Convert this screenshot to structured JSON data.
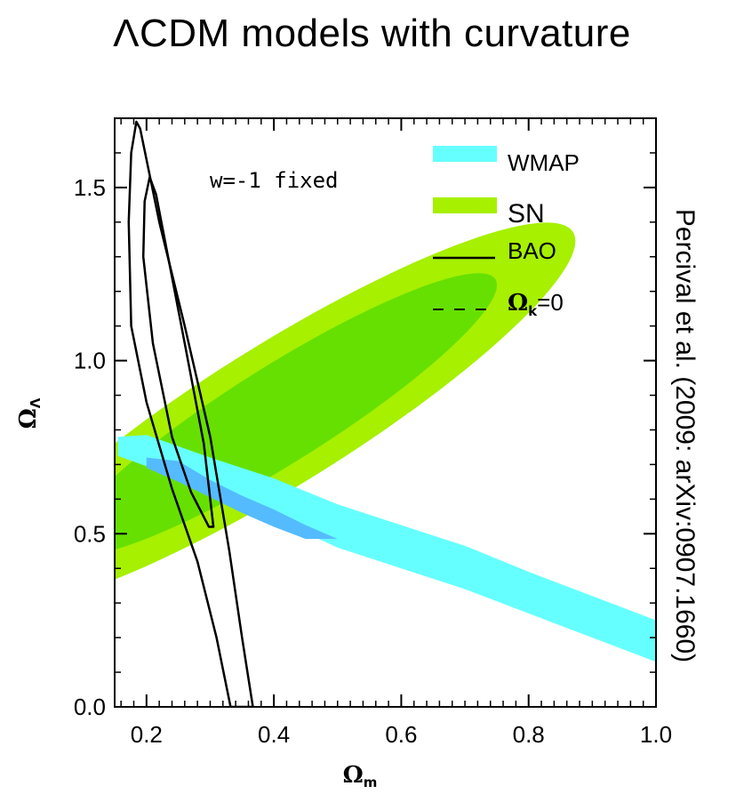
{
  "title": "ΛCDM models with curvature",
  "side_note": "Percival et al. (2009: arXiv:0907.1660)",
  "chart_data": {
    "type": "contour",
    "title": "ΛCDM models with curvature",
    "xlabel": {
      "symbol": "Ω",
      "subscript": "m"
    },
    "ylabel": {
      "symbol": "Ω",
      "subscript": "Λ"
    },
    "xlim": [
      0.15,
      1.0
    ],
    "ylim": [
      0.0,
      1.7
    ],
    "xticks": [
      0.2,
      0.4,
      0.6,
      0.8,
      1.0
    ],
    "xtick_labels": [
      "0.2",
      "0.4",
      "0.6",
      "0.8",
      "1.0"
    ],
    "yticks": [
      0.0,
      0.5,
      1.0,
      1.5
    ],
    "ytick_labels": [
      "0.0",
      "0.5",
      "1.0",
      "1.5"
    ],
    "annotation": "w=-1 fixed",
    "legend": {
      "position": "top-right",
      "items": [
        {
          "label": "WMAP",
          "style": "band",
          "color": "#66ffff"
        },
        {
          "label": "SN",
          "style": "band",
          "color": "#a6f000"
        },
        {
          "label": "BAO",
          "style": "solid-line",
          "color": "#000000"
        },
        {
          "label_symbol": "Ω",
          "label_subscript": "k",
          "label_suffix": "=0",
          "style": "dashed-line",
          "color": "#000000"
        }
      ]
    },
    "series": [
      {
        "name": "WMAP",
        "colors": {
          "outer": "#66ffff",
          "inner": "#55bbff"
        },
        "outer": [
          [
            0.155,
            0.78
          ],
          [
            0.2,
            0.785
          ],
          [
            0.3,
            0.72
          ],
          [
            0.4,
            0.66
          ],
          [
            0.5,
            0.585
          ],
          [
            0.6,
            0.525
          ],
          [
            0.7,
            0.465
          ],
          [
            0.8,
            0.39
          ],
          [
            0.9,
            0.32
          ],
          [
            1.0,
            0.25
          ],
          [
            1.0,
            0.13
          ],
          [
            0.9,
            0.2
          ],
          [
            0.8,
            0.27
          ],
          [
            0.7,
            0.34
          ],
          [
            0.6,
            0.4
          ],
          [
            0.5,
            0.46
          ],
          [
            0.4,
            0.545
          ],
          [
            0.3,
            0.625
          ],
          [
            0.2,
            0.695
          ],
          [
            0.155,
            0.725
          ]
        ],
        "inner": [
          [
            0.2,
            0.72
          ],
          [
            0.25,
            0.71
          ],
          [
            0.3,
            0.655
          ],
          [
            0.35,
            0.61
          ],
          [
            0.4,
            0.57
          ],
          [
            0.45,
            0.525
          ],
          [
            0.5,
            0.485
          ],
          [
            0.45,
            0.485
          ],
          [
            0.4,
            0.52
          ],
          [
            0.35,
            0.56
          ],
          [
            0.3,
            0.605
          ],
          [
            0.25,
            0.65
          ],
          [
            0.2,
            0.69
          ]
        ]
      },
      {
        "name": "SN",
        "colors": {
          "outer": "#a6f000",
          "inner": "#66e000"
        },
        "outer": {
          "center": [
            0.41,
            0.845
          ],
          "semi_major": 0.705,
          "semi_minor": 0.156,
          "angle_deg": 50.6
        },
        "inner": {
          "center": [
            0.41,
            0.845
          ],
          "semi_major": 0.52,
          "semi_minor": 0.107,
          "angle_deg": 50.6
        }
      },
      {
        "name": "BAO",
        "colors": {
          "line": "#000000"
        },
        "outer": [
          [
            0.184,
            1.69
          ],
          [
            0.19,
            1.67
          ],
          [
            0.22,
            1.4
          ],
          [
            0.26,
            1.1
          ],
          [
            0.3,
            0.78
          ],
          [
            0.33,
            0.45
          ],
          [
            0.35,
            0.2
          ],
          [
            0.367,
            0.0
          ],
          [
            0.332,
            0.0
          ],
          [
            0.31,
            0.2
          ],
          [
            0.28,
            0.42
          ],
          [
            0.24,
            0.63
          ],
          [
            0.2,
            0.88
          ],
          [
            0.176,
            1.1
          ],
          [
            0.172,
            1.4
          ],
          [
            0.176,
            1.6
          ]
        ],
        "inner": [
          [
            0.205,
            1.53
          ],
          [
            0.215,
            1.48
          ],
          [
            0.26,
            1.05
          ],
          [
            0.29,
            0.76
          ],
          [
            0.305,
            0.52
          ],
          [
            0.298,
            0.52
          ],
          [
            0.27,
            0.62
          ],
          [
            0.24,
            0.78
          ],
          [
            0.21,
            1.05
          ],
          [
            0.195,
            1.3
          ],
          [
            0.197,
            1.46
          ]
        ]
      }
    ]
  }
}
